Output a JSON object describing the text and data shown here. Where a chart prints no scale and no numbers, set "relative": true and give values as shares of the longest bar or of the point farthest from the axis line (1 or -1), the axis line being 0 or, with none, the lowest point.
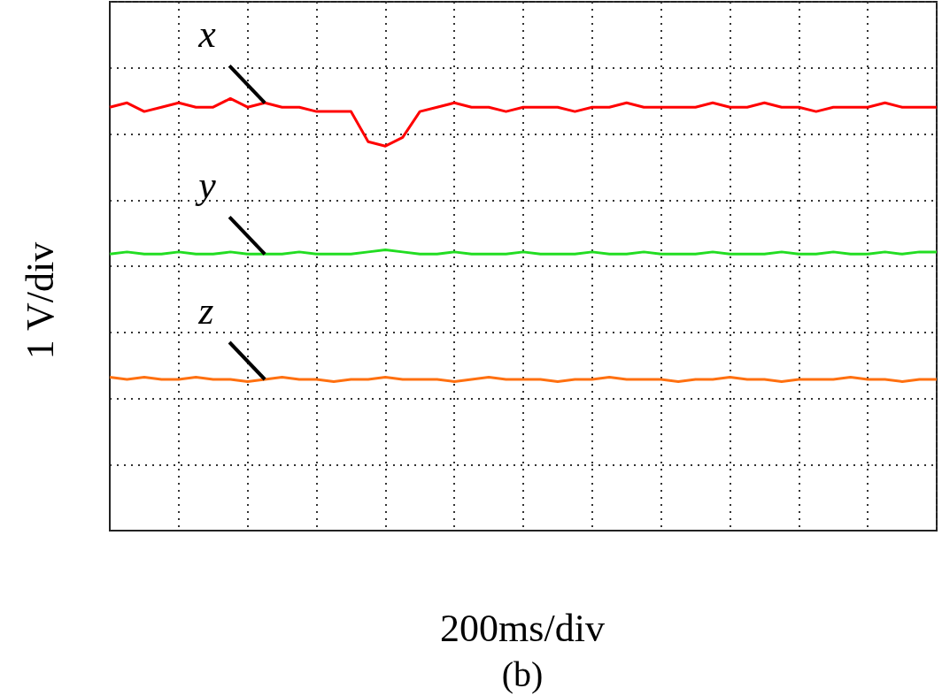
{
  "chart_data": {
    "type": "line",
    "relative": true,
    "grid": true,
    "marker": "none",
    "xlabel": "200ms/div",
    "ylabel": "1 V/div",
    "annotations": [
      "(b)"
    ],
    "categories": [
      null,
      null,
      null,
      null,
      null,
      null,
      null,
      null,
      null,
      null,
      null,
      null,
      null,
      null,
      null,
      null,
      null,
      null,
      null,
      null,
      null,
      null,
      null,
      null,
      null,
      null,
      null,
      null,
      null,
      null,
      null,
      null,
      null,
      null,
      null,
      null,
      null,
      null,
      null,
      null,
      null,
      null,
      null,
      null,
      null,
      null,
      null,
      null,
      null
    ],
    "series": [
      {
        "name": "x",
        "color": "#ff0000",
        "values": [
          0.98,
          0.99,
          0.97,
          0.98,
          0.99,
          0.98,
          0.98,
          1.0,
          0.98,
          0.99,
          0.98,
          0.98,
          0.97,
          0.97,
          0.97,
          0.9,
          0.89,
          0.91,
          0.97,
          0.98,
          0.99,
          0.98,
          0.98,
          0.97,
          0.98,
          0.98,
          0.98,
          0.97,
          0.98,
          0.98,
          0.99,
          0.98,
          0.98,
          0.98,
          0.98,
          0.99,
          0.98,
          0.98,
          0.99,
          0.98,
          0.98,
          0.97,
          0.98,
          0.98,
          0.98,
          0.99,
          0.98,
          0.98,
          0.98
        ]
      },
      {
        "name": "y",
        "color": "#22dd22",
        "values": [
          0.64,
          0.645,
          0.64,
          0.64,
          0.645,
          0.64,
          0.64,
          0.645,
          0.64,
          0.64,
          0.64,
          0.645,
          0.64,
          0.64,
          0.64,
          0.645,
          0.65,
          0.645,
          0.64,
          0.64,
          0.645,
          0.64,
          0.64,
          0.64,
          0.645,
          0.64,
          0.64,
          0.64,
          0.645,
          0.64,
          0.64,
          0.645,
          0.64,
          0.64,
          0.64,
          0.645,
          0.64,
          0.64,
          0.64,
          0.645,
          0.64,
          0.64,
          0.645,
          0.64,
          0.64,
          0.645,
          0.64,
          0.645,
          0.645
        ]
      },
      {
        "name": "z",
        "color": "#ff7010",
        "values": [
          0.355,
          0.35,
          0.355,
          0.35,
          0.35,
          0.355,
          0.35,
          0.35,
          0.345,
          0.35,
          0.355,
          0.35,
          0.35,
          0.345,
          0.35,
          0.35,
          0.355,
          0.35,
          0.35,
          0.35,
          0.345,
          0.35,
          0.355,
          0.35,
          0.35,
          0.35,
          0.345,
          0.35,
          0.35,
          0.355,
          0.35,
          0.35,
          0.35,
          0.345,
          0.35,
          0.35,
          0.355,
          0.35,
          0.35,
          0.345,
          0.35,
          0.35,
          0.35,
          0.355,
          0.35,
          0.35,
          0.345,
          0.35,
          0.35
        ]
      }
    ]
  }
}
